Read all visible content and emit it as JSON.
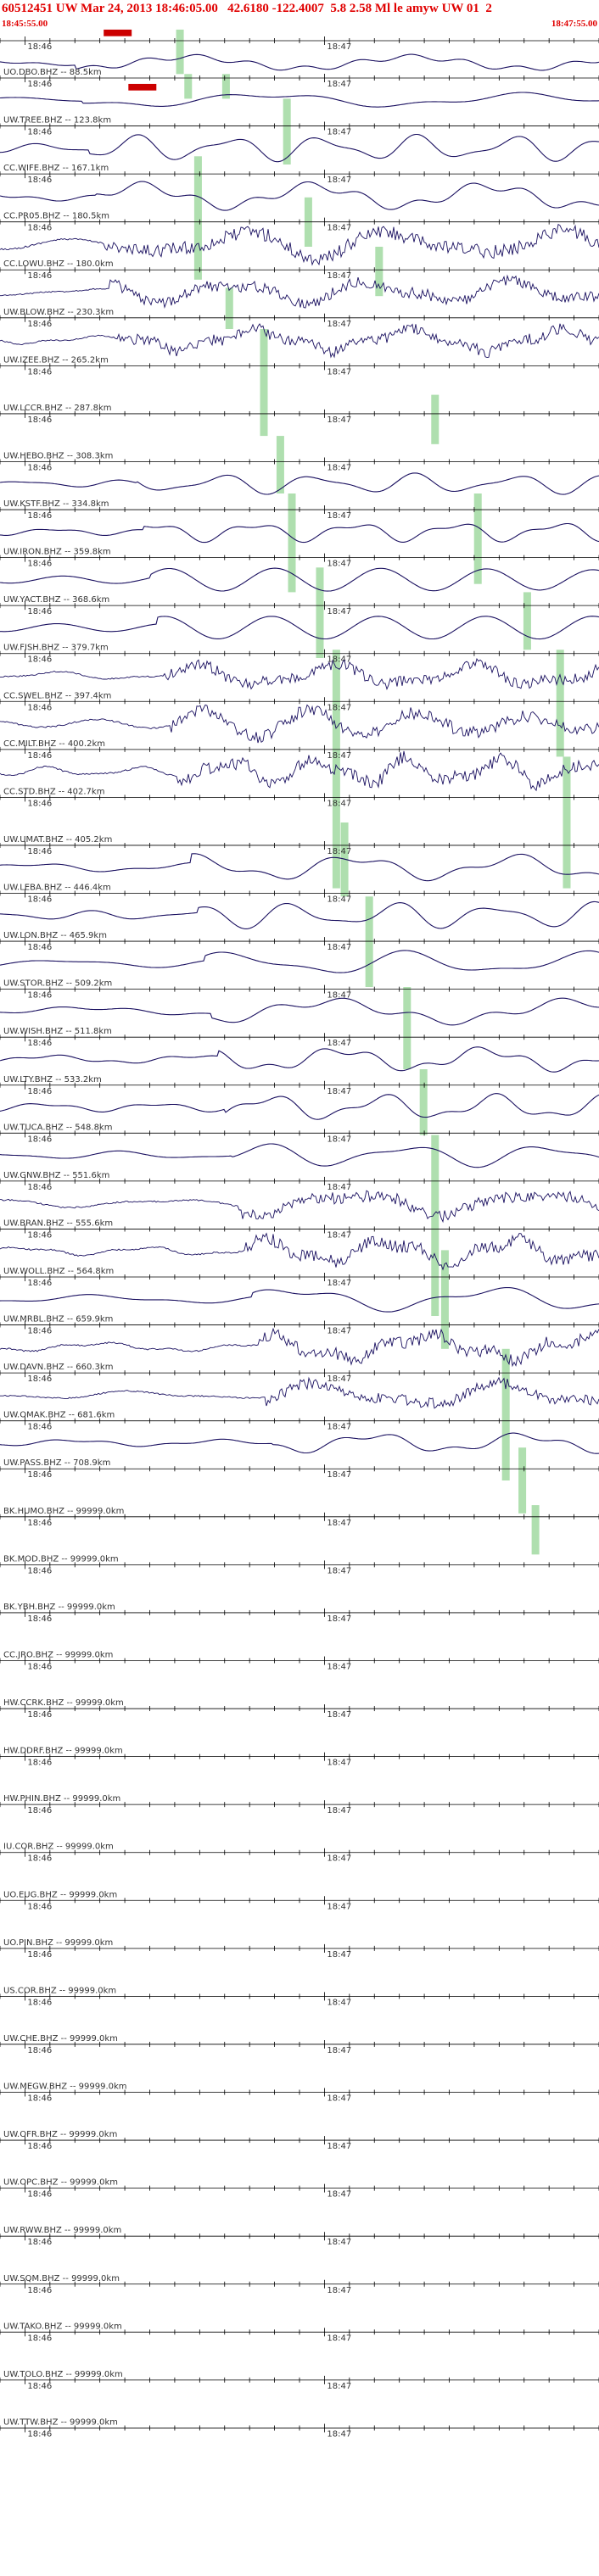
{
  "header": {
    "title": "60512451 UW Mar 24, 2013 18:46:05.00   42.6180 -122.4007  5.8 2.58 Ml le amyw UW 01  2",
    "start_time": "18:45:55.00",
    "end_time": "18:47:55.00"
  },
  "time_labels": [
    "18:46",
    "18:47"
  ],
  "stations": [
    "UO.DBO.BHZ -- 88.5km",
    "UW.TREE.BHZ -- 123.8km",
    "CC.WIFE.BHZ -- 167.1km",
    "CC.PR05.BHZ -- 180.5km",
    "CC.LOWU.BHZ -- 180.0km",
    "UW.BLOW.BHZ -- 230.3km",
    "UW.IZEE.BHZ -- 265.2km",
    "UW.LCCR.BHZ -- 287.8km",
    "UW.HEBO.BHZ -- 308.3km",
    "UW.KSTF.BHZ -- 334.8km",
    "UW.IRON.BHZ -- 359.8km",
    "UW.YACT.BHZ -- 368.6km",
    "UW.FISH.BHZ -- 379.7km",
    "CC.SWEL.BHZ -- 397.4km",
    "CC.MILT.BHZ -- 400.2km",
    "CC.STD.BHZ -- 402.7km",
    "UW.UMAT.BHZ -- 405.2km",
    "UW.LEBA.BHZ -- 446.4km",
    "UW.LON.BHZ -- 465.9km",
    "UW.STOR.BHZ -- 509.2km",
    "UW.WISH.BHZ -- 511.8km",
    "UW.LTY.BHZ -- 533.2km",
    "UW.TUCA.BHZ -- 548.8km",
    "UW.GNW.BHZ -- 551.6km",
    "UW.BRAN.BHZ -- 555.6km",
    "UW.WOLL.BHZ -- 564.8km",
    "UW.MRBL.BHZ -- 659.9km",
    "UW.DAVN.BHZ -- 660.3km",
    "UW.OMAK.BHZ -- 681.6km",
    "UW.PASS.BHZ -- 708.9km",
    "BK.HUMO.BHZ -- 99999.0km",
    "BK.MOD.BHZ -- 99999.0km",
    "BK.YBH.BHZ -- 99999.0km",
    "CC.JRO.BHZ -- 99999.0km",
    "HW.CCRK.BHZ -- 99999.0km",
    "HW.DDRF.BHZ -- 99999.0km",
    "HW.PHIN.BHZ -- 99999.0km",
    "IU.COR.BHZ -- 99999.0km",
    "UO.EUG.BHZ -- 99999.0km",
    "UO.PIN.BHZ -- 99999.0km",
    "US.COR.BHZ -- 99999.0km",
    "UW.CHE.BHZ -- 99999.0km",
    "UW.MEGW.BHZ -- 99999.0km",
    "UW.OFR.BHZ -- 99999.0km",
    "UW.OPC.BHZ -- 99999.0km",
    "UW.RWW.BHZ -- 99999.0km",
    "UW.SQM.BHZ -- 99999.0km",
    "UW.TAKO.BHZ -- 99999.0km",
    "UW.TOLO.BHZ -- 99999.0km",
    "UW.TTW.BHZ -- 99999.0km"
  ]
}
